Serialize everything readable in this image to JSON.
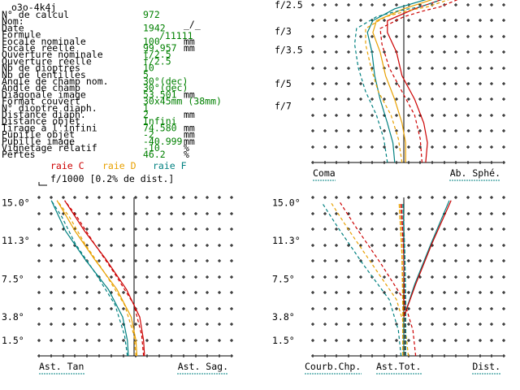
{
  "header": {
    "file_name": "o3o-4k4j",
    "symbols": {
      "date_mark": "_/_",
      "format_mark": "/11111"
    }
  },
  "specs": [
    {
      "label": "N° de calcul",
      "value": "972",
      "unit": ""
    },
    {
      "label": "Nom:",
      "value": "",
      "unit": ""
    },
    {
      "label": "Date",
      "value": "1942",
      "unit": ""
    },
    {
      "label": "Formule",
      "value": "",
      "unit": ""
    },
    {
      "label": "Focale nominale",
      "value": "100",
      "unit": "mm"
    },
    {
      "label": "Focale réelle",
      "value": "99.957",
      "unit": "mm"
    },
    {
      "label": "Ouverture nominale",
      "value": "f/2.5",
      "unit": ""
    },
    {
      "label": "Ouverture réelle",
      "value": "f/2.5",
      "unit": ""
    },
    {
      "label": "Nb de dioptres",
      "value": "10",
      "unit": ""
    },
    {
      "label": "Nb de lentilles",
      "value": "5",
      "unit": ""
    },
    {
      "label": "Angle de champ nom.",
      "value": "30°(dec)",
      "unit": ""
    },
    {
      "label": "Angle de champ",
      "value": "30°(dec)",
      "unit": ""
    },
    {
      "label": "Diagonale image",
      "value": "53.501",
      "unit": "mm"
    },
    {
      "label": "Format couvert",
      "value": "30x45mm (38mm)",
      "unit": ""
    },
    {
      "label": "N° dioptre diaph.",
      "value": "1",
      "unit": ""
    },
    {
      "label": "Distance diaph.",
      "value": "2",
      "unit": "mm"
    },
    {
      "label": "Distance objet",
      "value": "Infini",
      "unit": ""
    },
    {
      "label": "Tirage à l'infini",
      "value": "74.580",
      "unit": "mm"
    },
    {
      "label": "Pupille objet",
      "value": "-2",
      "unit": "mm"
    },
    {
      "label": "Pupille image",
      "value": "-40.999",
      "unit": "mm"
    },
    {
      "label": "Vignetage relatif",
      "value": "-10",
      "unit": "%"
    },
    {
      "label": "Pertes",
      "value": "46.2",
      "unit": "%"
    }
  ],
  "legend": {
    "lines": [
      {
        "text": "raie C",
        "color": "#cc0000"
      },
      {
        "text": "raie D",
        "color": "#e8a000"
      },
      {
        "text": "raie F",
        "color": "#008080"
      }
    ],
    "scale_text": "f/1000 [0.2% de dist.]"
  },
  "colors": {
    "C": "#cc0000",
    "D": "#e8a000",
    "F": "#008080",
    "label": "#000000",
    "value": "#008000",
    "underline": "#008080"
  },
  "chart_data": [
    {
      "type": "line",
      "panel": "spherical_coma",
      "y_tick_labels": [
        "f/2.5",
        "f/3",
        "f/3.5",
        "f/5",
        "f/7"
      ],
      "y_tick_values": [
        0.4,
        0.333,
        0.286,
        0.2,
        0.143
      ],
      "x_range": [
        -1.0,
        1.0
      ],
      "y_range": [
        0.0,
        0.4
      ],
      "bottom_labels": {
        "left": "Coma",
        "right": "Ab. Sphé."
      },
      "series": [
        {
          "line": "C",
          "style": "solid",
          "points": [
            [
              0.24,
              0
            ],
            [
              0.26,
              0.05
            ],
            [
              0.22,
              0.1
            ],
            [
              0.12,
              0.16
            ],
            [
              -0.02,
              0.22
            ],
            [
              -0.08,
              0.28
            ],
            [
              -0.18,
              0.33
            ],
            [
              -0.18,
              0.36
            ],
            [
              0.12,
              0.39
            ],
            [
              0.5,
              0.42
            ]
          ]
        },
        {
          "line": "D",
          "style": "solid",
          "points": [
            [
              0.02,
              0
            ],
            [
              0.02,
              0.05
            ],
            [
              -0.02,
              0.1
            ],
            [
              -0.1,
              0.16
            ],
            [
              -0.2,
              0.22
            ],
            [
              -0.26,
              0.28
            ],
            [
              -0.34,
              0.33
            ],
            [
              -0.3,
              0.36
            ],
            [
              0.0,
              0.39
            ],
            [
              0.4,
              0.42
            ]
          ]
        },
        {
          "line": "F",
          "style": "solid",
          "points": [
            [
              -0.1,
              0
            ],
            [
              -0.12,
              0.05
            ],
            [
              -0.18,
              0.1
            ],
            [
              -0.26,
              0.16
            ],
            [
              -0.32,
              0.22
            ],
            [
              -0.35,
              0.28
            ],
            [
              -0.4,
              0.33
            ],
            [
              -0.34,
              0.36
            ],
            [
              -0.1,
              0.39
            ],
            [
              0.34,
              0.42
            ]
          ]
        },
        {
          "line": "C",
          "style": "dashed",
          "points": [
            [
              0.2,
              0
            ],
            [
              0.18,
              0.06
            ],
            [
              0.12,
              0.12
            ],
            [
              -0.02,
              0.18
            ],
            [
              -0.16,
              0.24
            ],
            [
              -0.24,
              0.3
            ],
            [
              -0.26,
              0.34
            ],
            [
              0.0,
              0.37
            ],
            [
              0.22,
              0.385
            ],
            [
              0.4,
              0.395
            ],
            [
              0.66,
              0.42
            ]
          ]
        },
        {
          "line": "D",
          "style": "dashed",
          "points": [
            [
              -0.02,
              0
            ],
            [
              -0.06,
              0.06
            ],
            [
              -0.14,
              0.12
            ],
            [
              -0.28,
              0.18
            ],
            [
              -0.36,
              0.24
            ],
            [
              -0.42,
              0.3
            ],
            [
              -0.42,
              0.34
            ],
            [
              -0.2,
              0.37
            ],
            [
              0.04,
              0.385
            ],
            [
              0.26,
              0.395
            ],
            [
              0.58,
              0.42
            ]
          ]
        },
        {
          "line": "F",
          "style": "dashed",
          "points": [
            [
              -0.18,
              0
            ],
            [
              -0.22,
              0.06
            ],
            [
              -0.3,
              0.12
            ],
            [
              -0.42,
              0.18
            ],
            [
              -0.5,
              0.24
            ],
            [
              -0.54,
              0.3
            ],
            [
              -0.52,
              0.34
            ],
            [
              -0.3,
              0.37
            ],
            [
              -0.06,
              0.385
            ],
            [
              0.18,
              0.395
            ],
            [
              0.5,
              0.42
            ]
          ]
        }
      ]
    },
    {
      "type": "line",
      "panel": "astigmatism",
      "y_tick_labels": [
        "15.0°",
        "11.3°",
        "7.5°",
        "3.8°",
        "1.5°"
      ],
      "y_tick_values": [
        15.0,
        11.3,
        7.5,
        3.8,
        1.5
      ],
      "x_range": [
        -1.0,
        1.0
      ],
      "y_range": [
        0,
        15.5
      ],
      "bottom_labels": {
        "left": "Ast. Tan",
        "right": "Ast. Sag."
      },
      "series": [
        {
          "line": "C",
          "style": "solid",
          "points": [
            [
              0.11,
              0
            ],
            [
              0.1,
              1.5
            ],
            [
              0.06,
              3.8
            ],
            [
              -0.08,
              6.5
            ],
            [
              -0.3,
              9.5
            ],
            [
              -0.52,
              12.2
            ],
            [
              -0.73,
              15.2
            ]
          ]
        },
        {
          "line": "D",
          "style": "solid",
          "points": [
            [
              0.03,
              0
            ],
            [
              0.02,
              1.5
            ],
            [
              -0.03,
              3.8
            ],
            [
              -0.18,
              6.5
            ],
            [
              -0.42,
              9.5
            ],
            [
              -0.62,
              12.2
            ],
            [
              -0.81,
              15.2
            ]
          ]
        },
        {
          "line": "F",
          "style": "solid",
          "points": [
            [
              -0.06,
              0
            ],
            [
              -0.07,
              1.5
            ],
            [
              -0.12,
              3.8
            ],
            [
              -0.27,
              6.5
            ],
            [
              -0.52,
              9.5
            ],
            [
              -0.72,
              12.2
            ],
            [
              -0.87,
              15.2
            ]
          ]
        },
        {
          "line": "C",
          "style": "dashed",
          "points": [
            [
              0.1,
              0
            ],
            [
              0.08,
              2.0
            ],
            [
              0.0,
              5.0
            ],
            [
              -0.2,
              8.0
            ],
            [
              -0.42,
              11.0
            ],
            [
              -0.6,
              13.6
            ],
            [
              -0.73,
              15.2
            ]
          ]
        },
        {
          "line": "D",
          "style": "dashed",
          "points": [
            [
              0.02,
              0
            ],
            [
              0.0,
              2.0
            ],
            [
              -0.1,
              5.0
            ],
            [
              -0.3,
              8.0
            ],
            [
              -0.52,
              11.0
            ],
            [
              -0.68,
              13.6
            ],
            [
              -0.81,
              15.2
            ]
          ]
        },
        {
          "line": "F",
          "style": "dashed",
          "points": [
            [
              -0.07,
              0
            ],
            [
              -0.1,
              2.0
            ],
            [
              -0.2,
              5.0
            ],
            [
              -0.4,
              8.0
            ],
            [
              -0.62,
              11.0
            ],
            [
              -0.76,
              13.6
            ],
            [
              -0.87,
              15.2
            ]
          ]
        }
      ]
    },
    {
      "type": "line",
      "panel": "field_curvature_distortion",
      "y_tick_labels": [
        "15.0°",
        "11.3°",
        "7.5°",
        "3.8°",
        "1.5°"
      ],
      "y_tick_values": [
        15.0,
        11.3,
        7.5,
        3.8,
        1.5
      ],
      "x_range": [
        -1.0,
        1.0
      ],
      "y_range": [
        0,
        15.5
      ],
      "bottom_labels": {
        "left": "Courb.Chp.",
        "center": "Ast.Tot.",
        "right": "Dist."
      },
      "series": [
        {
          "line": "C",
          "style": "dashed",
          "points": [
            [
              0.13,
              0
            ],
            [
              0.1,
              2.5
            ],
            [
              0.0,
              5.5
            ],
            [
              -0.25,
              9.0
            ],
            [
              -0.52,
              12.5
            ],
            [
              -0.7,
              15.0
            ]
          ]
        },
        {
          "line": "D",
          "style": "dashed",
          "points": [
            [
              0.05,
              0
            ],
            [
              0.02,
              2.5
            ],
            [
              -0.08,
              5.5
            ],
            [
              -0.35,
              9.0
            ],
            [
              -0.62,
              12.5
            ],
            [
              -0.8,
              15.0
            ]
          ]
        },
        {
          "line": "F",
          "style": "dashed",
          "points": [
            [
              -0.03,
              0
            ],
            [
              -0.06,
              2.5
            ],
            [
              -0.16,
              5.5
            ],
            [
              -0.45,
              9.0
            ],
            [
              -0.72,
              12.5
            ],
            [
              -0.9,
              15.0
            ]
          ]
        },
        {
          "line": "C",
          "style": "dashed2",
          "points": [
            [
              0.01,
              0
            ],
            [
              0.01,
              5
            ],
            [
              0.0,
              10
            ],
            [
              -0.03,
              15.0
            ]
          ]
        },
        {
          "line": "D",
          "style": "dashed2",
          "points": [
            [
              -0.01,
              0
            ],
            [
              -0.01,
              5
            ],
            [
              -0.02,
              10
            ],
            [
              -0.05,
              15.0
            ]
          ]
        },
        {
          "line": "F",
          "style": "dashed2",
          "points": [
            [
              0.02,
              0
            ],
            [
              0.02,
              5
            ],
            [
              0.01,
              10
            ],
            [
              -0.01,
              15.0
            ]
          ]
        },
        {
          "line": "F",
          "style": "solid",
          "points": [
            [
              0,
              0
            ],
            [
              0,
              3.8
            ],
            [
              0.12,
              7.0
            ],
            [
              0.3,
              11.0
            ],
            [
              0.5,
              15.2
            ]
          ]
        },
        {
          "line": "C",
          "style": "solid",
          "points": [
            [
              0,
              3.8
            ],
            [
              0.13,
              7.0
            ],
            [
              0.31,
              11.0
            ],
            [
              0.52,
              15.2
            ]
          ]
        }
      ]
    }
  ]
}
